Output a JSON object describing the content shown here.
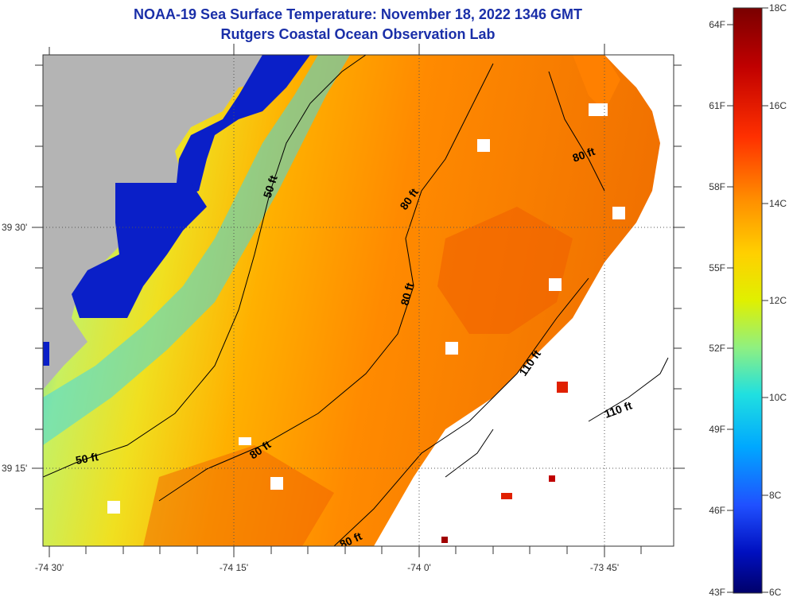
{
  "title_line1": "NOAA-19 Sea Surface Temperature:  November 18, 2022 1346 GMT",
  "title_line2": "Rutgers Coastal Ocean Observation Lab",
  "lon_labels": [
    "-74 30'",
    "-74 15'",
    "-74 0'",
    "-73 45'"
  ],
  "lat_labels": [
    "39 30'",
    "39 15'"
  ],
  "contour_labels": [
    {
      "text": "50 ft",
      "rot": -72
    },
    {
      "text": "50 ft",
      "rot": -10
    },
    {
      "text": "80 ft",
      "rot": -55
    },
    {
      "text": "80 ft",
      "rot": -75
    },
    {
      "text": "80 ft",
      "rot": -35
    },
    {
      "text": "80 ft",
      "rot": -25
    },
    {
      "text": "80 ft",
      "rot": -20
    },
    {
      "text": "110 ft",
      "rot": -55
    },
    {
      "text": "110 ft",
      "rot": -20
    }
  ],
  "colorbar": {
    "fahrenheit": [
      "64F",
      "61F",
      "58F",
      "55F",
      "52F",
      "49F",
      "46F",
      "43F"
    ],
    "celsius": [
      "18C",
      "16C",
      "14C",
      "12C",
      "10C",
      "8C",
      "6C"
    ],
    "colors": [
      "#7a0000",
      "#d00000",
      "#ff4000",
      "#ff8a00",
      "#ffd000",
      "#e8f000",
      "#a0f060",
      "#40e0d0",
      "#00c0ff",
      "#2060ff",
      "#0010d0",
      "#000080"
    ]
  },
  "colors": {
    "land": "#b4b4b4",
    "title": "#1a2fa8"
  }
}
